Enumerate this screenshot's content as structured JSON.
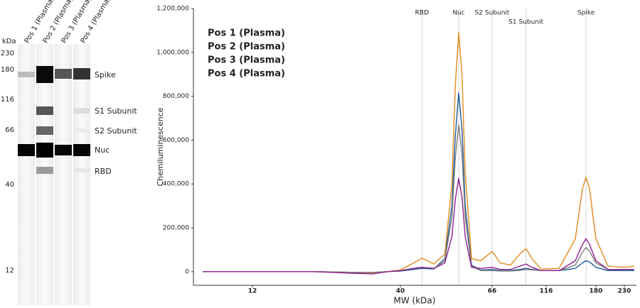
{
  "blot": {
    "kda_label": "kDa",
    "lanes": [
      "Pos 1 (Plasma)",
      "Pos 2 (Plasma)",
      "Pos 3 (Plasma)",
      "Pos 4 (Plasma)"
    ],
    "mw_markers": [
      "230",
      "180",
      "116",
      "66",
      "40",
      "12"
    ],
    "bands": [
      "Spike",
      "S1 Subunit",
      "S2 Subunit",
      "Nuc",
      "RBD"
    ]
  },
  "chart_data": {
    "type": "line",
    "x_label": "MW (kDa)",
    "y_label": "Chemiluminescence",
    "x": [
      8,
      12,
      20,
      28,
      32,
      36,
      40,
      43,
      45,
      48,
      51,
      53,
      54,
      55,
      56,
      57,
      59,
      62,
      66,
      72,
      80,
      88,
      94,
      100,
      110,
      130,
      150,
      160,
      165,
      170,
      180,
      200,
      230,
      250
    ],
    "xlim": [
      7.4,
      255
    ],
    "xticks": [
      12,
      40,
      66,
      116,
      180,
      230
    ],
    "log_x": true,
    "ylim": [
      -62000,
      1200000
    ],
    "yticks": [
      0,
      {
        "value": 200000,
        "label": "200,000"
      },
      {
        "value": 400000,
        "label": "400,000"
      },
      {
        "value": 600000,
        "label": "600,000"
      },
      {
        "value": 800000,
        "label": "800,000"
      },
      {
        "value": 1000000,
        "label": "1,000,000"
      },
      {
        "value": 1200000,
        "label": "1,200,000"
      }
    ],
    "markers": [
      {
        "label": "RBD",
        "x": 45
      },
      {
        "label": "Nuc",
        "x": 55
      },
      {
        "label": "S2 Subunit",
        "x": 66
      },
      {
        "label": "S1 Subunit",
        "x": 94
      },
      {
        "label": "Spike",
        "x": 165
      }
    ],
    "series": [
      {
        "name": "Pos 1 (Plasma)",
        "color": "#1f5b98",
        "values": [
          0,
          0,
          0,
          -3000,
          -3000,
          0,
          3000,
          10000,
          15000,
          12000,
          60000,
          300000,
          620000,
          815000,
          650000,
          300000,
          30000,
          8000,
          10000,
          5000,
          5000,
          10000,
          15000,
          10000,
          5000,
          5000,
          15000,
          40000,
          50000,
          45000,
          20000,
          5000,
          5000,
          5000
        ]
      },
      {
        "name": "Pos 2 (Plasma)",
        "color": "#e08a1e",
        "values": [
          0,
          0,
          0,
          -5000,
          -5000,
          0,
          8000,
          40000,
          62000,
          35000,
          80000,
          400000,
          850000,
          1090000,
          900000,
          450000,
          60000,
          50000,
          92000,
          40000,
          30000,
          80000,
          105000,
          60000,
          12000,
          15000,
          150000,
          380000,
          430000,
          380000,
          150000,
          25000,
          20000,
          25000
        ]
      },
      {
        "name": "Pos 3 (Plasma)",
        "color": "#7f7f7f",
        "values": [
          0,
          0,
          0,
          -3000,
          -3000,
          0,
          5000,
          15000,
          20000,
          15000,
          50000,
          250000,
          520000,
          670000,
          540000,
          250000,
          25000,
          5000,
          5000,
          3000,
          3000,
          6000,
          10000,
          8000,
          5000,
          5000,
          30000,
          90000,
          110000,
          95000,
          40000,
          10000,
          10000,
          10000
        ]
      },
      {
        "name": "Pos 4 (Plasma)",
        "color": "#8e1f8e",
        "values": [
          0,
          0,
          0,
          -8000,
          -10000,
          0,
          5000,
          15000,
          20000,
          15000,
          40000,
          160000,
          330000,
          425000,
          340000,
          160000,
          20000,
          15000,
          20000,
          10000,
          10000,
          25000,
          35000,
          20000,
          5000,
          5000,
          50000,
          125000,
          150000,
          125000,
          50000,
          10000,
          10000,
          10000
        ]
      }
    ]
  }
}
